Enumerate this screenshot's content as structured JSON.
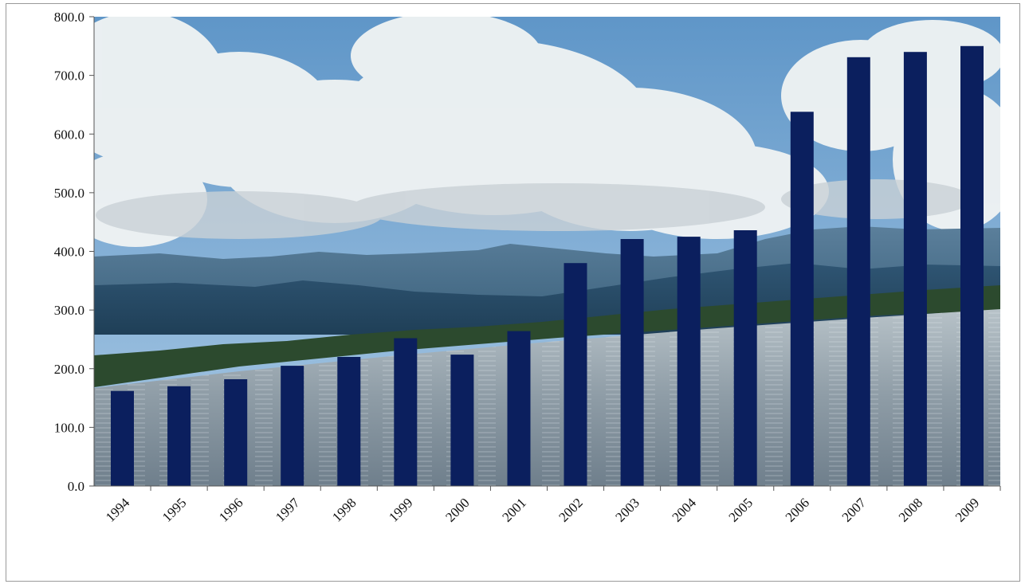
{
  "chart_data": {
    "type": "bar",
    "title": "",
    "xlabel": "",
    "ylabel": "",
    "categories": [
      "1994",
      "1995",
      "1996",
      "1997",
      "1998",
      "1999",
      "2000",
      "2001",
      "2002",
      "2003",
      "2004",
      "2005",
      "2006",
      "2007",
      "2008",
      "2009"
    ],
    "values": [
      162,
      170,
      182,
      205,
      220,
      252,
      224,
      264,
      380,
      421,
      425,
      436,
      638,
      731,
      740,
      750
    ],
    "ylim": [
      0,
      800
    ],
    "yticks": [
      "0.0",
      "100.0",
      "200.0",
      "300.0",
      "400.0",
      "500.0",
      "600.0",
      "700.0",
      "800.0"
    ],
    "grid": false,
    "legend": "none",
    "bar_color": "#0b1f5e",
    "background": "photo of sky, clouds, mountains and water"
  }
}
